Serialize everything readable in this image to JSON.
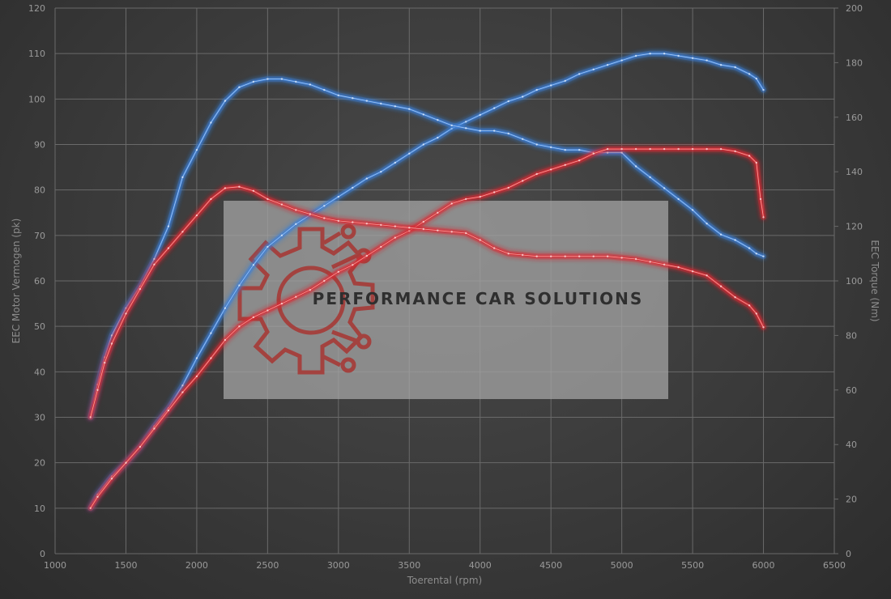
{
  "chart_data": {
    "type": "line",
    "title": "",
    "xlabel": "Toerental (rpm)",
    "ylabel_left": "EEC Motor Vermogen (pk)",
    "ylabel_right": "EEC Torque (Nm)",
    "xlim": [
      1000,
      6500
    ],
    "ylim_left": [
      0,
      120
    ],
    "ylim_right": [
      0,
      200
    ],
    "x_ticks": [
      1000,
      1500,
      2000,
      2500,
      3000,
      3500,
      4000,
      4500,
      5000,
      5500,
      6000,
      6500
    ],
    "y_ticks_left": [
      0,
      10,
      20,
      30,
      40,
      50,
      60,
      70,
      80,
      90,
      100,
      110,
      120
    ],
    "y_ticks_right": [
      0,
      20,
      40,
      60,
      80,
      100,
      120,
      140,
      160,
      180,
      200
    ],
    "grid": true,
    "legend": "none",
    "colors": {
      "tuned": "#3c7fd6",
      "stock": "#d92f34"
    },
    "series": [
      {
        "axis": "left",
        "color": "#3c7fd6",
        "points": [
          [
            1250,
            10
          ],
          [
            1300,
            13
          ],
          [
            1400,
            17
          ],
          [
            1500,
            20
          ],
          [
            1600,
            23.5
          ],
          [
            1700,
            28
          ],
          [
            1800,
            32
          ],
          [
            1900,
            37
          ],
          [
            2000,
            43
          ],
          [
            2100,
            48.5
          ],
          [
            2200,
            54
          ],
          [
            2300,
            59
          ],
          [
            2400,
            63.5
          ],
          [
            2500,
            67.5
          ],
          [
            2600,
            70
          ],
          [
            2700,
            72.5
          ],
          [
            2800,
            74.5
          ],
          [
            2900,
            76.5
          ],
          [
            3000,
            78.5
          ],
          [
            3100,
            80.5
          ],
          [
            3200,
            82.5
          ],
          [
            3300,
            84
          ],
          [
            3400,
            86
          ],
          [
            3500,
            88
          ],
          [
            3600,
            90
          ],
          [
            3700,
            91.5
          ],
          [
            3800,
            93.5
          ],
          [
            3900,
            95
          ],
          [
            4000,
            96.5
          ],
          [
            4100,
            98
          ],
          [
            4200,
            99.5
          ],
          [
            4300,
            100.5
          ],
          [
            4400,
            102
          ],
          [
            4500,
            103
          ],
          [
            4600,
            104
          ],
          [
            4700,
            105.5
          ],
          [
            4800,
            106.5
          ],
          [
            4900,
            107.5
          ],
          [
            5000,
            108.5
          ],
          [
            5100,
            109.5
          ],
          [
            5200,
            110
          ],
          [
            5300,
            110
          ],
          [
            5400,
            109.5
          ],
          [
            5500,
            109
          ],
          [
            5600,
            108.5
          ],
          [
            5700,
            107.5
          ],
          [
            5800,
            107
          ],
          [
            5900,
            105.5
          ],
          [
            5950,
            104.5
          ],
          [
            6000,
            102
          ]
        ]
      },
      {
        "axis": "right",
        "color": "#3c7fd6",
        "points": [
          [
            1250,
            50
          ],
          [
            1300,
            62
          ],
          [
            1350,
            72
          ],
          [
            1400,
            80
          ],
          [
            1500,
            90
          ],
          [
            1600,
            98
          ],
          [
            1700,
            108
          ],
          [
            1800,
            120
          ],
          [
            1900,
            138
          ],
          [
            2000,
            148
          ],
          [
            2100,
            158
          ],
          [
            2200,
            166
          ],
          [
            2300,
            171
          ],
          [
            2400,
            173
          ],
          [
            2500,
            174
          ],
          [
            2600,
            174
          ],
          [
            2700,
            173
          ],
          [
            2800,
            172
          ],
          [
            2900,
            170
          ],
          [
            3000,
            168
          ],
          [
            3100,
            167
          ],
          [
            3200,
            166
          ],
          [
            3300,
            165
          ],
          [
            3400,
            164
          ],
          [
            3500,
            163
          ],
          [
            3600,
            161
          ],
          [
            3700,
            159
          ],
          [
            3800,
            157
          ],
          [
            3900,
            156
          ],
          [
            4000,
            155
          ],
          [
            4100,
            155
          ],
          [
            4200,
            154
          ],
          [
            4300,
            152
          ],
          [
            4400,
            150
          ],
          [
            4500,
            149
          ],
          [
            4600,
            148
          ],
          [
            4700,
            148
          ],
          [
            4800,
            147
          ],
          [
            4900,
            147
          ],
          [
            5000,
            147
          ],
          [
            5100,
            142
          ],
          [
            5200,
            138
          ],
          [
            5300,
            134
          ],
          [
            5400,
            130
          ],
          [
            5500,
            126
          ],
          [
            5600,
            121
          ],
          [
            5700,
            117
          ],
          [
            5800,
            115
          ],
          [
            5900,
            112
          ],
          [
            5950,
            110
          ],
          [
            6000,
            109
          ]
        ]
      },
      {
        "axis": "left",
        "color": "#d92f34",
        "points": [
          [
            1250,
            10
          ],
          [
            1300,
            12.5
          ],
          [
            1400,
            16.5
          ],
          [
            1500,
            20
          ],
          [
            1600,
            23.5
          ],
          [
            1700,
            27.5
          ],
          [
            1800,
            31.5
          ],
          [
            1900,
            35.5
          ],
          [
            2000,
            39
          ],
          [
            2100,
            43
          ],
          [
            2200,
            47
          ],
          [
            2300,
            50
          ],
          [
            2400,
            52
          ],
          [
            2500,
            53.5
          ],
          [
            2600,
            55
          ],
          [
            2700,
            56.5
          ],
          [
            2800,
            58
          ],
          [
            2900,
            60
          ],
          [
            3000,
            62
          ],
          [
            3100,
            63.5
          ],
          [
            3200,
            65.5
          ],
          [
            3300,
            67.5
          ],
          [
            3400,
            69.5
          ],
          [
            3500,
            71
          ],
          [
            3600,
            73
          ],
          [
            3700,
            75
          ],
          [
            3800,
            77
          ],
          [
            3900,
            78
          ],
          [
            4000,
            78.5
          ],
          [
            4100,
            79.5
          ],
          [
            4200,
            80.5
          ],
          [
            4300,
            82
          ],
          [
            4400,
            83.5
          ],
          [
            4500,
            84.5
          ],
          [
            4600,
            85.5
          ],
          [
            4700,
            86.5
          ],
          [
            4800,
            88
          ],
          [
            4900,
            89
          ],
          [
            5000,
            89
          ],
          [
            5100,
            89
          ],
          [
            5200,
            89
          ],
          [
            5300,
            89
          ],
          [
            5400,
            89
          ],
          [
            5500,
            89
          ],
          [
            5600,
            89
          ],
          [
            5700,
            89
          ],
          [
            5800,
            88.5
          ],
          [
            5900,
            87.5
          ],
          [
            5950,
            86
          ],
          [
            5980,
            78
          ],
          [
            6000,
            74
          ]
        ]
      },
      {
        "axis": "right",
        "color": "#d92f34",
        "points": [
          [
            1250,
            50
          ],
          [
            1300,
            60
          ],
          [
            1350,
            70
          ],
          [
            1400,
            77
          ],
          [
            1500,
            88
          ],
          [
            1600,
            97
          ],
          [
            1700,
            106
          ],
          [
            1800,
            112
          ],
          [
            1900,
            118
          ],
          [
            2000,
            124
          ],
          [
            2100,
            130
          ],
          [
            2200,
            134
          ],
          [
            2300,
            134.5
          ],
          [
            2400,
            133
          ],
          [
            2500,
            130
          ],
          [
            2600,
            128
          ],
          [
            2700,
            126
          ],
          [
            2800,
            124.5
          ],
          [
            2900,
            123
          ],
          [
            3000,
            122
          ],
          [
            3100,
            121.5
          ],
          [
            3200,
            121
          ],
          [
            3300,
            120.5
          ],
          [
            3400,
            120
          ],
          [
            3500,
            119.5
          ],
          [
            3600,
            119
          ],
          [
            3700,
            118.5
          ],
          [
            3800,
            118
          ],
          [
            3900,
            117.5
          ],
          [
            4000,
            115
          ],
          [
            4100,
            112
          ],
          [
            4200,
            110
          ],
          [
            4300,
            109.5
          ],
          [
            4400,
            109
          ],
          [
            4500,
            109
          ],
          [
            4600,
            109
          ],
          [
            4700,
            109
          ],
          [
            4800,
            109
          ],
          [
            4900,
            109
          ],
          [
            5000,
            108.5
          ],
          [
            5100,
            108
          ],
          [
            5200,
            107
          ],
          [
            5300,
            106
          ],
          [
            5400,
            105
          ],
          [
            5500,
            103.5
          ],
          [
            5600,
            102
          ],
          [
            5700,
            98
          ],
          [
            5800,
            94
          ],
          [
            5900,
            91
          ],
          [
            5950,
            88
          ],
          [
            6000,
            83
          ]
        ]
      }
    ]
  },
  "watermark": {
    "text": "PERFORMANCE CAR SOLUTIONS",
    "logo_icon": "gear-circuit-icon"
  }
}
